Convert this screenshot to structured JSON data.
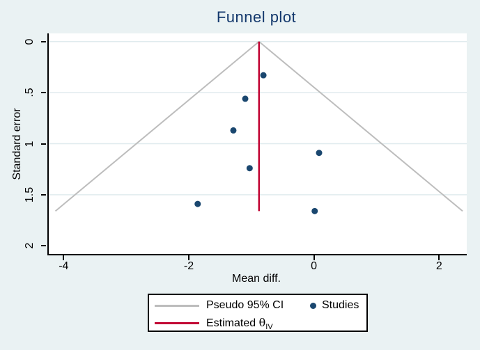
{
  "colors": {
    "background": "#EAF2F3",
    "plot_background": "#FFFFFF",
    "gridline": "#E0EBEE",
    "axis": "#000000",
    "title": "#13386C",
    "study_navy": "#1A476F",
    "estimate_red": "#C10534",
    "ci_gray": "#BDBDBD"
  },
  "legend": {
    "pseudo_label": "Pseudo 95% CI",
    "studies_label": "Studies",
    "estimated_prefix": "Estimated ",
    "theta_char": "θ",
    "theta_sub": "IV"
  },
  "chart_data": {
    "type": "scatter",
    "title": "Funnel plot",
    "xlabel": "Mean diff.",
    "ylabel": "Standard error",
    "xlim": [
      -4.26,
      2.42
    ],
    "ylim": [
      -0.08,
      2.08
    ],
    "y_inverted": true,
    "grid": "horizontal-only",
    "x_ticks": [
      -4,
      -2,
      0,
      2
    ],
    "x_tick_labels": [
      "-4",
      "-2",
      "0",
      "2"
    ],
    "y_ticks": [
      0,
      0.5,
      1,
      1.5,
      2
    ],
    "y_tick_labels": [
      "0",
      ".5",
      "1",
      "1.5",
      "2"
    ],
    "gridlines_y": [
      0,
      0.5,
      1,
      1.5
    ],
    "funnel": {
      "apex_x": -0.9,
      "z": 1.96,
      "se_max": 1.66
    },
    "estimate_line": {
      "x": -0.9,
      "se_from": 0,
      "se_to": 1.66
    },
    "points": [
      {
        "x": -0.83,
        "se": 0.33
      },
      {
        "x": -1.12,
        "se": 0.56
      },
      {
        "x": -1.31,
        "se": 0.87
      },
      {
        "x": 0.06,
        "se": 1.09
      },
      {
        "x": -1.05,
        "se": 1.24
      },
      {
        "x": -1.88,
        "se": 1.59
      },
      {
        "x": -0.01,
        "se": 1.66
      }
    ],
    "legend_position": "bottom",
    "legend_entries": [
      "Pseudo 95% CI",
      "Studies",
      "Estimated θIV"
    ]
  }
}
